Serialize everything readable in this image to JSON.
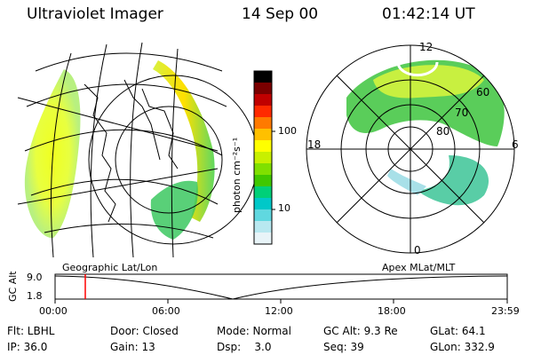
{
  "header": {
    "title": "Ultraviolet Imager",
    "date": "14 Sep 00",
    "time": "01:42:14 UT"
  },
  "colorbar": {
    "unit": "photon cm⁻²s⁻¹",
    "tick_100": "100",
    "tick_10": "10",
    "colors": [
      "#000000",
      "#7a0000",
      "#c00000",
      "#ff2a00",
      "#ff7a00",
      "#ffc000",
      "#ffff00",
      "#c8f000",
      "#80e000",
      "#40c800",
      "#00d078",
      "#00c8c8",
      "#60d8e0",
      "#b8e8f0",
      "#e8f4f8"
    ]
  },
  "polar": {
    "lat_labels": [
      "60",
      "70",
      "80"
    ],
    "mlt_labels": {
      "top": "12",
      "left": "18",
      "right": "6",
      "bottom": "0"
    }
  },
  "timeline": {
    "alt_label": "GC Alt",
    "y_ticks": [
      "9.0",
      "1.8"
    ],
    "left_caption": "Geographic Lat/Lon",
    "right_caption": "Apex  MLat/MLT",
    "x_ticks": [
      "00:00",
      "06:00",
      "12:00",
      "18:00",
      "23:59"
    ]
  },
  "info": {
    "row1": [
      "Flt: LBHL",
      "Door: Closed",
      "Mode: Normal",
      "GC Alt: 9.3 Re",
      "GLat:  64.1"
    ],
    "row2": [
      "IP: 36.0",
      "Gain: 13",
      "Dsp:    3.0",
      "Seq: 39",
      "GLon: 332.9"
    ]
  },
  "accent": {
    "marker": "#ff0000"
  }
}
